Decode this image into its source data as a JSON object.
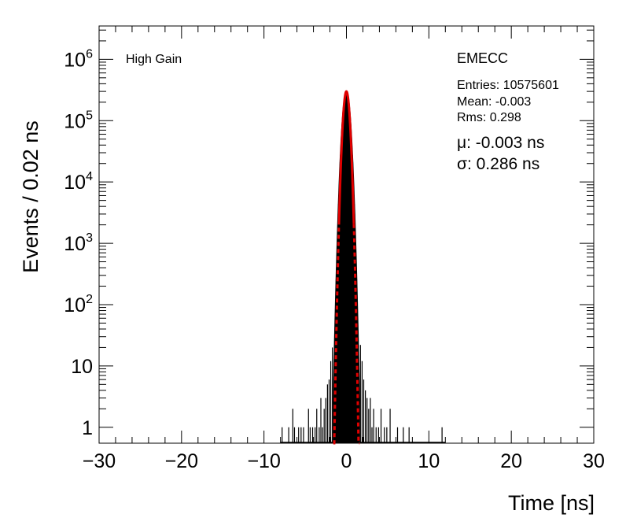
{
  "chart_data": {
    "type": "line",
    "title": "",
    "xlabel": "Time [ns]",
    "ylabel": "Events / 0.02 ns",
    "xlim": [
      -30,
      30
    ],
    "ylim": [
      0.55,
      3500000
    ],
    "yscale": "log",
    "grid": false,
    "x_ticks": [
      -30,
      -20,
      -10,
      0,
      10,
      20,
      30
    ],
    "x_tick_labels": [
      "−30",
      "−20",
      "−10",
      "0",
      "10",
      "20",
      "30"
    ],
    "y_ticks": [
      1,
      10,
      100,
      1000,
      10000,
      100000,
      1000000
    ],
    "y_tick_labels": [
      {
        "base": "1",
        "exp": ""
      },
      {
        "base": "10",
        "exp": ""
      },
      {
        "base": "10",
        "exp": "2"
      },
      {
        "base": "10",
        "exp": "3"
      },
      {
        "base": "10",
        "exp": "4"
      },
      {
        "base": "10",
        "exp": "5"
      },
      {
        "base": "10",
        "exp": "6"
      }
    ],
    "annotations": {
      "gain": "High Gain",
      "region": "EMECC",
      "entries": "Entries: 10575601",
      "mean": "Mean: -0.003",
      "rms": "Rms: 0.298",
      "fit_mu": "μ: -0.003 ns",
      "fit_sigma": "σ: 0.286 ns"
    },
    "series": [
      {
        "kind": "histogram",
        "color": "#000000",
        "core_peak": 300000,
        "core_sigma": 0.33,
        "bin_width": 0.02,
        "tail_bins": [
          {
            "x": -7.8,
            "y": 1
          },
          {
            "x": -7.0,
            "y": 1
          },
          {
            "x": -6.5,
            "y": 2
          },
          {
            "x": -6.3,
            "y": 1
          },
          {
            "x": -5.8,
            "y": 1
          },
          {
            "x": -5.5,
            "y": 1
          },
          {
            "x": -5.2,
            "y": 1
          },
          {
            "x": -4.6,
            "y": 2
          },
          {
            "x": -4.4,
            "y": 1
          },
          {
            "x": -4.1,
            "y": 1
          },
          {
            "x": -3.8,
            "y": 1
          },
          {
            "x": -3.6,
            "y": 2
          },
          {
            "x": -3.3,
            "y": 1
          },
          {
            "x": -3.1,
            "y": 3
          },
          {
            "x": -2.9,
            "y": 1
          },
          {
            "x": -2.7,
            "y": 2
          },
          {
            "x": -2.5,
            "y": 3
          },
          {
            "x": -2.3,
            "y": 5
          },
          {
            "x": -2.1,
            "y": 6
          },
          {
            "x": -1.9,
            "y": 12
          },
          {
            "x": -1.7,
            "y": 20
          },
          {
            "x": 1.7,
            "y": 22
          },
          {
            "x": 1.9,
            "y": 12
          },
          {
            "x": 2.1,
            "y": 6
          },
          {
            "x": 2.3,
            "y": 4
          },
          {
            "x": 2.5,
            "y": 3
          },
          {
            "x": 2.7,
            "y": 2
          },
          {
            "x": 2.9,
            "y": 3
          },
          {
            "x": 3.1,
            "y": 1
          },
          {
            "x": 3.3,
            "y": 2
          },
          {
            "x": 3.6,
            "y": 1
          },
          {
            "x": 3.9,
            "y": 1
          },
          {
            "x": 4.2,
            "y": 2
          },
          {
            "x": 4.6,
            "y": 1
          },
          {
            "x": 4.9,
            "y": 1
          },
          {
            "x": 5.3,
            "y": 2
          },
          {
            "x": 6.2,
            "y": 1
          },
          {
            "x": 6.9,
            "y": 1
          },
          {
            "x": 7.6,
            "y": 1
          },
          {
            "x": 11.6,
            "y": 1
          }
        ]
      },
      {
        "kind": "gaussian-fit",
        "color": "#e00000",
        "mu": -0.003,
        "sigma": 0.286,
        "amplitude": 300000,
        "solid_range": [
          -0.9,
          0.9
        ],
        "dashed_range": [
          -1.6,
          1.6
        ]
      }
    ]
  }
}
